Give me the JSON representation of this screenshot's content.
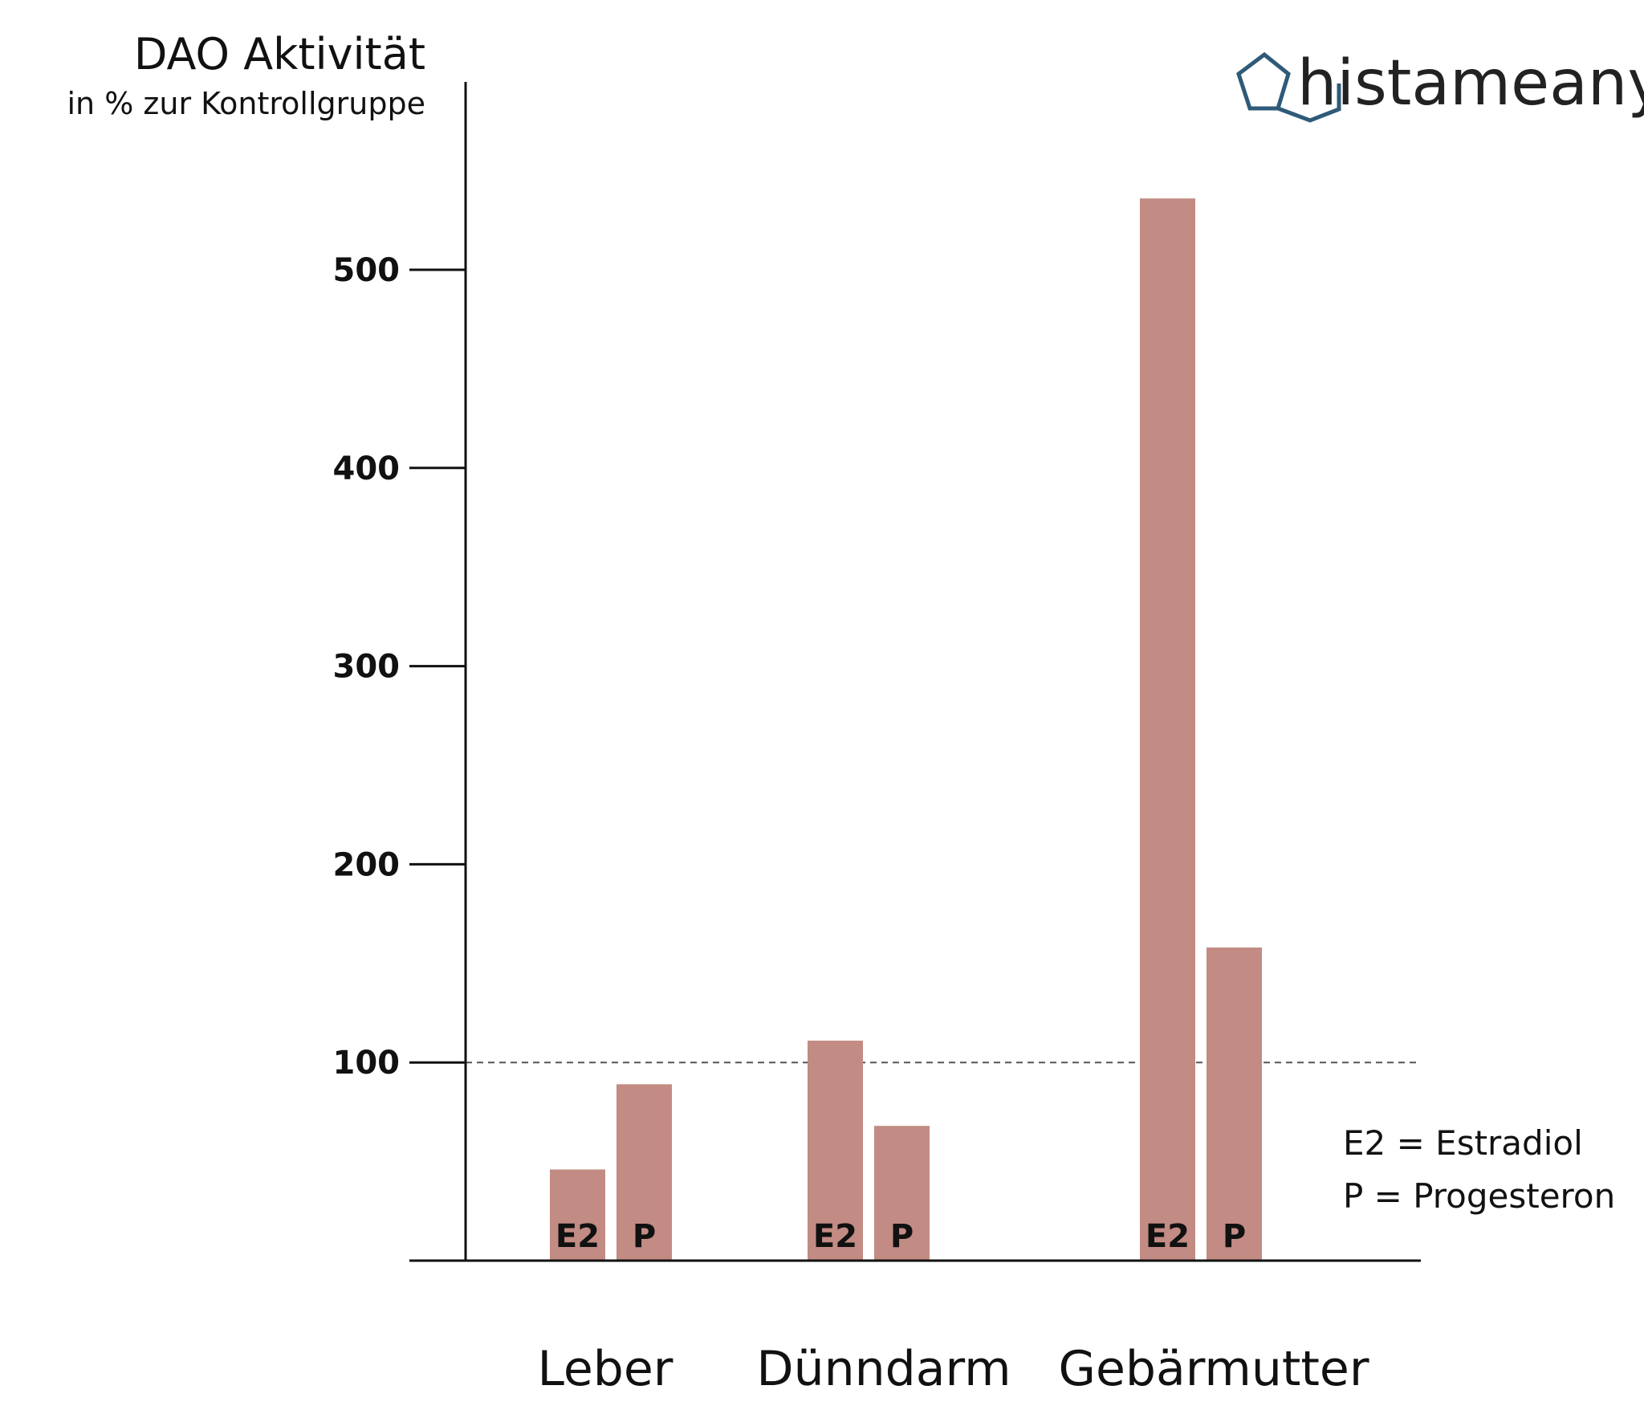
{
  "chart_data": {
    "type": "bar",
    "title": "DAO Aktivität",
    "subtitle": "in % zur Kontrollgruppe",
    "categories": [
      "Leber",
      "Dünndarm",
      "Gebärmutter"
    ],
    "series": [
      {
        "name": "E2",
        "values": [
          46,
          111,
          536
        ]
      },
      {
        "name": "P",
        "values": [
          89,
          68,
          158
        ]
      }
    ],
    "yticks": [
      "100",
      "200",
      "300",
      "400",
      "500"
    ],
    "ylim": [
      0,
      600
    ],
    "reference_line": 100,
    "legend": [
      "E2 = Estradiol",
      "P = Progesteron"
    ],
    "bar_color": "#c28b83",
    "grid": false
  },
  "brand": {
    "name": "histameany",
    "logo_color": "#2f5a78"
  }
}
